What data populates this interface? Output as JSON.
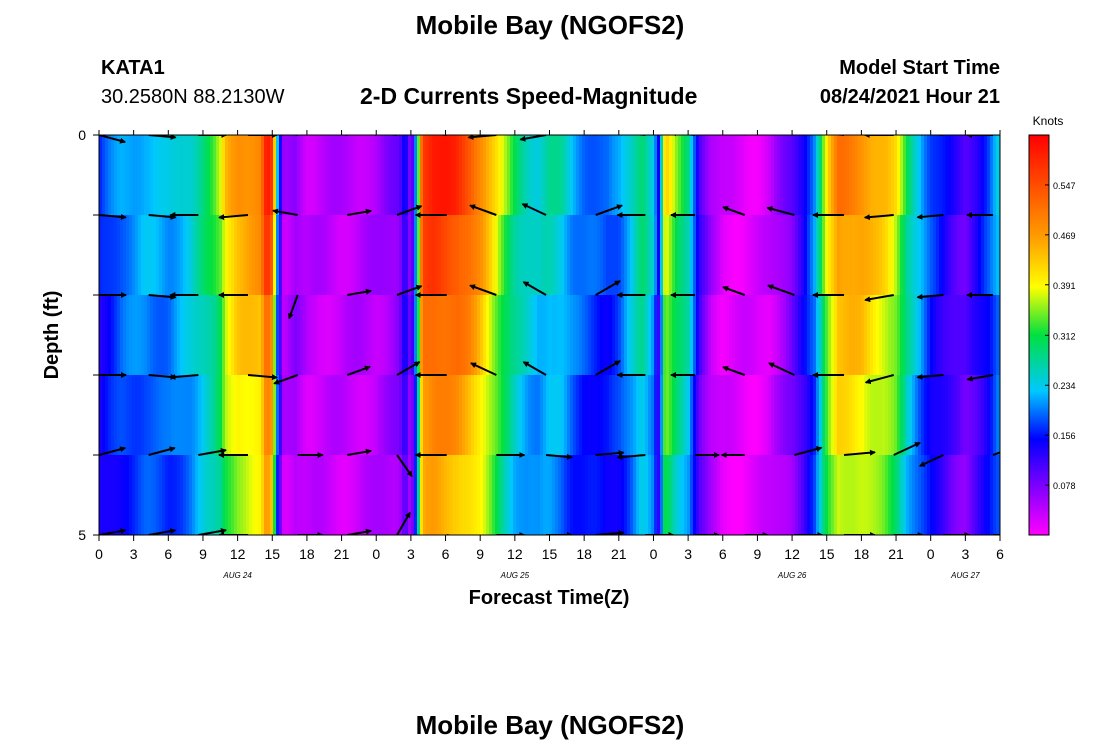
{
  "header": {
    "title": "Mobile Bay (NGOFS2)",
    "station_id": "KATA1",
    "coordinates": "30.2580N  88.2130W",
    "model_start_label": "Model Start Time",
    "model_start_value": "08/24/2021 Hour 21"
  },
  "footer": {
    "title": "Mobile Bay (NGOFS2)"
  },
  "chart_data": {
    "type": "heatmap",
    "title": "2-D Currents Speed-Magnitude",
    "xlabel": "Forecast Time(Z)",
    "ylabel": "Depth (ft)",
    "x_hours_range": [
      0,
      78
    ],
    "x_tick_hours": [
      0,
      3,
      6,
      9,
      12,
      15,
      18,
      21,
      24,
      27,
      30,
      33,
      36,
      39,
      42,
      45,
      48,
      51,
      54,
      57,
      60,
      63,
      66,
      69,
      72,
      75,
      78
    ],
    "x_tick_labels": [
      "0",
      "3",
      "6",
      "9",
      "12",
      "15",
      "18",
      "21",
      "0",
      "3",
      "6",
      "9",
      "12",
      "15",
      "18",
      "21",
      "0",
      "3",
      "6",
      "9",
      "12",
      "15",
      "18",
      "21",
      "0",
      "3",
      "6"
    ],
    "date_labels": [
      {
        "hour": 12,
        "text": "AUG 24"
      },
      {
        "hour": 36,
        "text": "AUG 25"
      },
      {
        "hour": 60,
        "text": "AUG 26"
      },
      {
        "hour": 75,
        "text": "AUG 27"
      }
    ],
    "y_range": [
      0,
      5
    ],
    "y_tick_labels": [
      "0",
      "5"
    ],
    "colorbar": {
      "unit": "Knots",
      "min": 0.0,
      "max": 0.625,
      "tick_values": [
        0.078,
        0.156,
        0.234,
        0.312,
        0.391,
        0.469,
        0.547
      ],
      "tick_labels": [
        "0.078",
        "0.156",
        "0.234",
        "0.312",
        "0.391",
        "0.469",
        "0.547"
      ]
    },
    "speed_profile_hours": [
      0,
      2,
      4,
      6,
      8,
      10,
      10.5,
      11,
      12,
      14,
      14.5,
      15,
      15.5,
      16,
      17,
      18,
      21,
      24,
      26,
      26.5,
      27,
      27.5,
      28,
      29,
      30,
      31,
      32,
      33,
      34,
      35,
      36,
      37,
      38,
      39,
      40,
      41,
      42,
      43,
      44,
      45,
      46,
      47,
      48,
      48.5,
      49,
      50,
      51,
      52,
      53,
      54,
      55,
      56,
      57,
      58,
      59,
      60,
      61,
      62,
      63,
      64,
      65,
      66,
      67,
      68,
      69,
      70,
      71,
      72,
      73,
      74,
      75,
      76,
      77,
      78
    ],
    "speed_profile_knots": [
      0.16,
      0.21,
      0.23,
      0.22,
      0.26,
      0.33,
      0.36,
      0.43,
      0.48,
      0.5,
      0.61,
      0.56,
      0.18,
      0.04,
      0.07,
      0.04,
      0.04,
      0.05,
      0.08,
      0.16,
      0.06,
      0.25,
      0.58,
      0.6,
      0.59,
      0.58,
      0.55,
      0.5,
      0.43,
      0.36,
      0.3,
      0.27,
      0.25,
      0.27,
      0.26,
      0.22,
      0.2,
      0.19,
      0.18,
      0.2,
      0.25,
      0.31,
      0.24,
      0.13,
      0.42,
      0.34,
      0.29,
      0.12,
      0.05,
      0.02,
      0.02,
      0.02,
      0.02,
      0.03,
      0.06,
      0.09,
      0.15,
      0.22,
      0.4,
      0.5,
      0.5,
      0.49,
      0.46,
      0.44,
      0.4,
      0.3,
      0.24,
      0.18,
      0.15,
      0.12,
      0.1,
      0.14,
      0.18,
      0.24
    ],
    "depth_layers": 5,
    "arrow_hours": [
      0,
      4.3,
      8.6,
      12.9,
      17.2,
      21.5,
      25.8,
      30.1,
      34.4,
      38.7,
      43,
      47.3,
      51.6,
      55.9,
      60.2,
      64.5,
      68.8,
      73.1,
      77.4
    ],
    "arrow_directions_deg": [
      [
        105,
        95,
        90,
        90,
        280,
        280,
        275,
        275,
        265,
        260,
        300,
        275,
        275,
        300,
        290,
        275,
        270,
        275,
        270
      ],
      [
        95,
        95,
        270,
        265,
        280,
        80,
        70,
        270,
        290,
        295,
        70,
        270,
        270,
        290,
        285,
        270,
        265,
        265,
        270
      ],
      [
        90,
        95,
        270,
        270,
        200,
        80,
        70,
        270,
        290,
        300,
        60,
        270,
        270,
        290,
        290,
        270,
        260,
        265,
        270
      ],
      [
        90,
        95,
        265,
        95,
        250,
        70,
        60,
        270,
        295,
        300,
        60,
        270,
        270,
        290,
        295,
        270,
        255,
        265,
        260
      ],
      [
        75,
        75,
        80,
        270,
        90,
        80,
        145,
        270,
        90,
        95,
        85,
        265,
        90,
        270,
        75,
        85,
        65,
        245,
        70
      ],
      [
        80,
        80,
        80,
        270,
        90,
        80,
        30,
        100,
        90,
        90,
        85,
        90,
        90,
        90,
        90,
        90,
        90,
        90,
        90
      ]
    ],
    "arrow_speeds_knots": [
      0.25,
      0.25,
      0.3,
      0.35,
      0.15,
      0.1,
      0.2,
      0.45,
      0.3,
      0.2,
      0.3,
      0.3,
      0.1,
      0.05,
      0.3,
      0.45,
      0.35,
      0.2,
      0.2
    ]
  }
}
